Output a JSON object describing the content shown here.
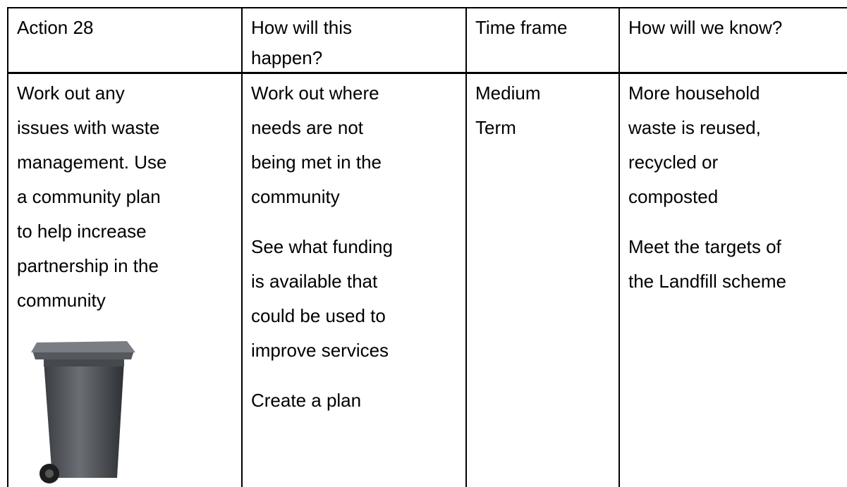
{
  "table": {
    "header": [
      [
        "Action 28"
      ],
      [
        "How will this",
        "happen?"
      ],
      [
        "Time frame"
      ],
      [
        "How will we know?"
      ]
    ],
    "row": [
      [
        [
          "Work out any",
          "issues with waste",
          "management. Use",
          "a community plan",
          "to help increase",
          "partnership in the",
          "community"
        ]
      ],
      [
        [
          "Work out where",
          "needs are not",
          "being met in the",
          "community"
        ],
        [
          "See what funding",
          "is available that",
          "could be used to",
          "improve services"
        ],
        [
          "Create a plan"
        ]
      ],
      [
        [
          "Medium",
          "Term"
        ]
      ],
      [
        [
          "More household",
          "waste is reused,",
          "recycled or",
          "composted"
        ],
        [
          "Meet the targets of",
          "the Landfill scheme"
        ]
      ]
    ]
  }
}
